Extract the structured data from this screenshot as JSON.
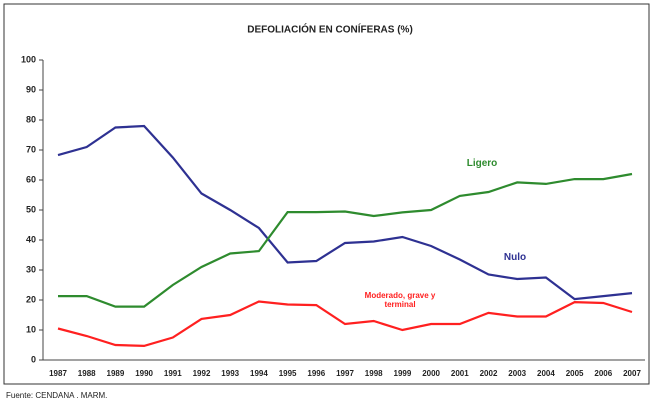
{
  "chart_data": {
    "type": "line",
    "title": "DEFOLIACIÓN EN CONÍFERAS (%)",
    "source": "Fuente: CENDANA . MARM.",
    "categories": [
      "1987",
      "1988",
      "1989",
      "1990",
      "1991",
      "1992",
      "1993",
      "1994",
      "1995",
      "1996",
      "1997",
      "1998",
      "1999",
      "2000",
      "2001",
      "2002",
      "2003",
      "2004",
      "2005",
      "2006",
      "2007"
    ],
    "series": [
      {
        "name": "Nulo",
        "color": "#2e3192",
        "values": [
          68.3,
          71,
          77.5,
          78,
          67.5,
          55.5,
          50,
          44,
          32.5,
          33,
          39,
          39.5,
          41,
          38,
          33.5,
          28.5,
          27,
          27.5,
          20.3,
          21.3,
          22.3
        ]
      },
      {
        "name": "Ligero",
        "color": "#2e8b2e",
        "values": [
          21.3,
          21.3,
          17.8,
          17.8,
          25,
          31,
          35.5,
          36.3,
          49.3,
          49.3,
          49.5,
          48,
          49.2,
          50,
          54.7,
          56,
          59.2,
          58.7,
          60.3,
          60.3,
          62
        ]
      },
      {
        "name": "Moderado, grave y terminal",
        "color": "#ff2020",
        "values": [
          10.5,
          8,
          5,
          4.7,
          7.5,
          13.7,
          15,
          19.5,
          18.5,
          18.3,
          12,
          13,
          10,
          12,
          12,
          15.7,
          14.5,
          14.5,
          19.3,
          19,
          16
        ]
      }
    ],
    "ylim": [
      0,
      100
    ],
    "yticks": [
      0,
      10,
      20,
      30,
      40,
      50,
      60,
      70,
      80,
      90,
      100
    ],
    "grid": false
  }
}
